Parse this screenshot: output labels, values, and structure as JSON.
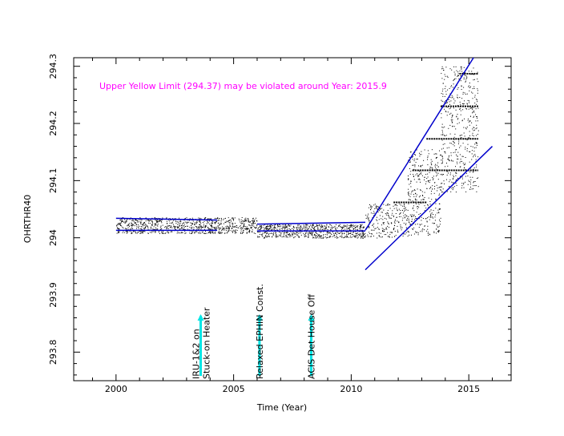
{
  "chart_data": {
    "type": "scatter",
    "xlabel": "Time (Year)",
    "ylabel": "OHRTHR40",
    "xlim": [
      1998.2,
      2016.8
    ],
    "ylim": [
      293.75,
      294.315
    ],
    "x_ticks": [
      2000,
      2005,
      2010,
      2015
    ],
    "x_tick_labels": [
      "2000",
      "2005",
      "2010",
      "2015"
    ],
    "y_ticks": [
      293.8,
      293.9,
      294.0,
      294.1,
      294.2,
      294.3
    ],
    "y_tick_labels": [
      "293.8",
      "293.9",
      "294",
      "294.1",
      "294.2",
      "294.3"
    ],
    "annotation": "Upper Yellow  Limit (294.37) may be violated around Year: 2015.9",
    "colors": {
      "points": "#000000",
      "fit_lines": "#0000cc",
      "annotation": "#ff00ff",
      "event_arrows": "#00e5e5"
    },
    "events": [
      {
        "x": 2003.6,
        "label_lines": [
          "IRU-1&2 on",
          "Stuck-on Heater"
        ]
      },
      {
        "x": 2006.1,
        "label_lines": [
          "Relaxed EPHIN Const."
        ]
      },
      {
        "x": 2008.3,
        "label_lines": [
          "ACIS Det House Off"
        ]
      }
    ],
    "fit_lines": [
      {
        "name": "",
        "x": [
          2000,
          2004.3
        ],
        "y": [
          294.013,
          294.013
        ]
      },
      {
        "name": "",
        "x": [
          2000,
          2004.3
        ],
        "y": [
          294.034,
          294.031
        ]
      },
      {
        "name": "",
        "x": [
          2006.0,
          2010.6
        ],
        "y": [
          294.012,
          294.012
        ]
      },
      {
        "name": "",
        "x": [
          2006.0,
          2010.6
        ],
        "y": [
          294.024,
          294.027
        ]
      },
      {
        "name": "",
        "x": [
          2010.6,
          2015.2
        ],
        "y": [
          294.013,
          294.315
        ]
      },
      {
        "name": "",
        "x": [
          2010.6,
          2016.0
        ],
        "y": [
          293.944,
          294.16
        ]
      }
    ],
    "data_segments": [
      {
        "x_start": 2000.0,
        "x_end": 2006.0,
        "y_center": 294.022,
        "y_spread": 0.014,
        "count": 900
      },
      {
        "x_start": 2006.0,
        "x_end": 2010.6,
        "y_center": 294.012,
        "y_spread": 0.012,
        "count": 700
      },
      {
        "x_start": 2010.6,
        "x_end": 2012.4,
        "y_center": 294.03,
        "y_spread": 0.03,
        "count": 250
      },
      {
        "x_start": 2012.4,
        "x_end": 2013.8,
        "y_center": 294.08,
        "y_spread": 0.075,
        "count": 350
      },
      {
        "x_start": 2013.8,
        "x_end": 2015.4,
        "y_center": 294.19,
        "y_spread": 0.11,
        "count": 500
      }
    ],
    "level_bands": [
      {
        "x_start": 2011.8,
        "x_end": 2013.2,
        "y": 294.062
      },
      {
        "x_start": 2012.6,
        "x_end": 2015.4,
        "y": 294.118
      },
      {
        "x_start": 2013.2,
        "x_end": 2015.4,
        "y": 294.173
      },
      {
        "x_start": 2013.8,
        "x_end": 2015.4,
        "y": 294.23
      },
      {
        "x_start": 2014.6,
        "x_end": 2015.4,
        "y": 294.287
      }
    ]
  }
}
